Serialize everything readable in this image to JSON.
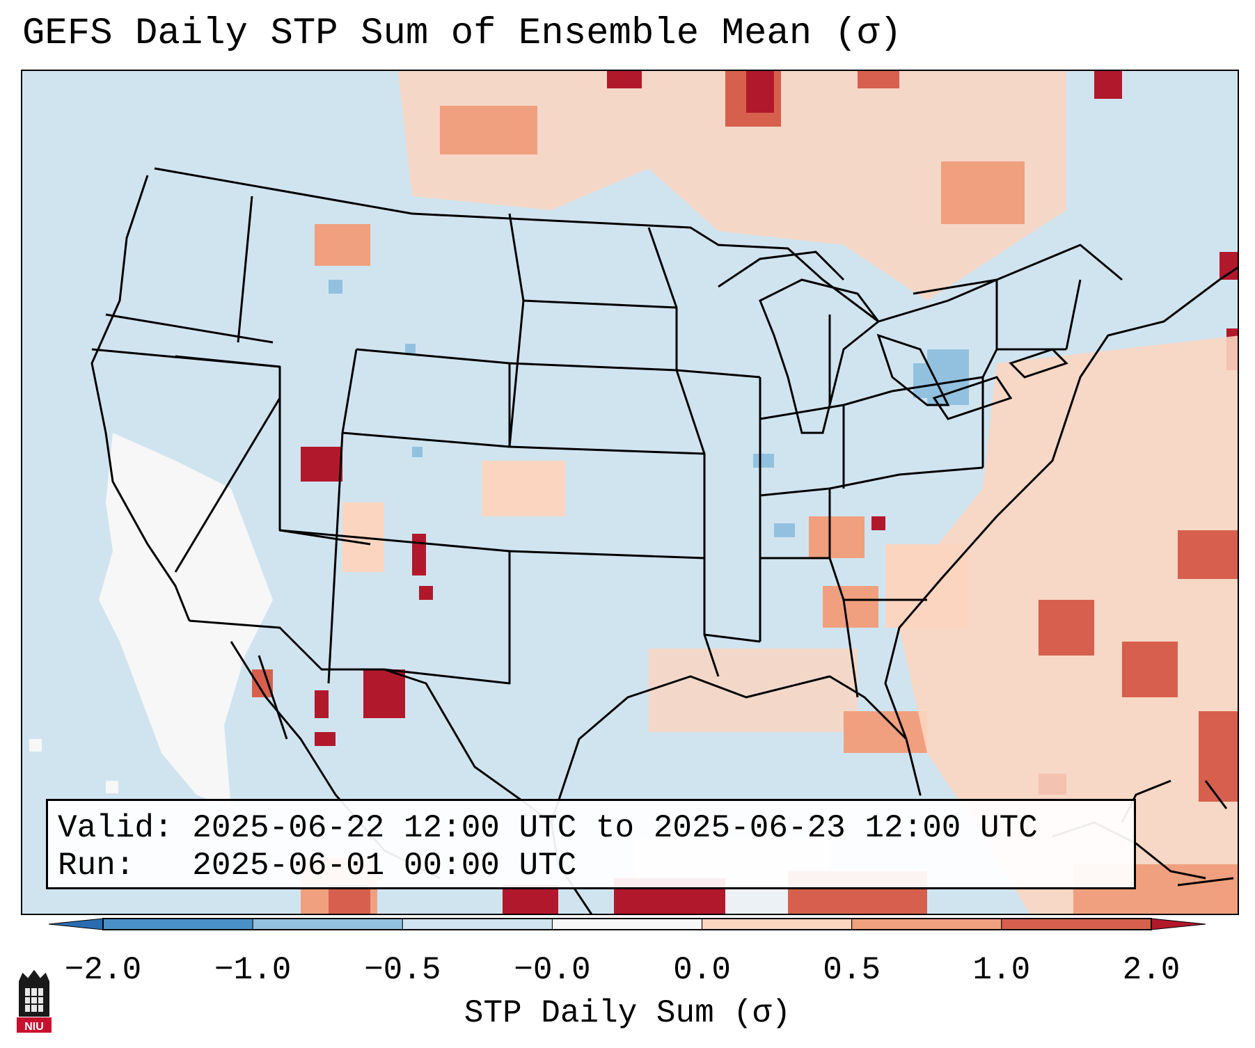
{
  "title": "GEFS Daily STP Sum of Ensemble Mean (σ)",
  "info": {
    "valid_line": "Valid: 2025-06-22 12:00 UTC to 2025-06-23 12:00 UTC",
    "run_line": "Run:   2025-06-01 00:00 UTC"
  },
  "colorbar": {
    "label": "STP Daily Sum (σ)",
    "ticks": [
      "−2.0",
      "−1.0",
      "−0.5",
      "−0.0",
      "0.0",
      "0.5",
      "1.0",
      "2.0"
    ],
    "bins": [
      {
        "range": "< -2.0",
        "color": "#2b6cb0"
      },
      {
        "range": "-2.0 to -1.0",
        "color": "#4a90c8"
      },
      {
        "range": "-1.0 to -0.5",
        "color": "#92c1df"
      },
      {
        "range": "-0.5 to -0.0",
        "color": "#d0e4f0"
      },
      {
        "range": "-0.0 to 0.0",
        "color": "#f7f7f7"
      },
      {
        "range": "0.0 to 0.5",
        "color": "#fbd5c0"
      },
      {
        "range": "0.5 to 1.0",
        "color": "#f0a07f"
      },
      {
        "range": "1.0 to 2.0",
        "color": "#d6604d"
      },
      {
        "range": "> 2.0",
        "color": "#b2182b"
      }
    ]
  },
  "logo_text": "NIU"
}
